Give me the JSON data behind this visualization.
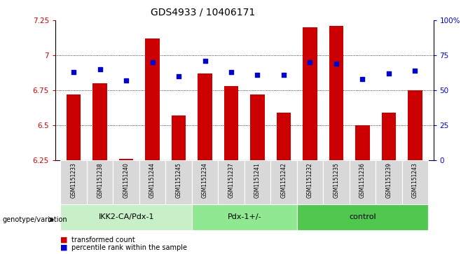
{
  "title": "GDS4933 / 10406171",
  "samples": [
    "GSM1151233",
    "GSM1151238",
    "GSM1151240",
    "GSM1151244",
    "GSM1151245",
    "GSM1151234",
    "GSM1151237",
    "GSM1151241",
    "GSM1151242",
    "GSM1151232",
    "GSM1151235",
    "GSM1151236",
    "GSM1151239",
    "GSM1151243"
  ],
  "groups": [
    {
      "label": "IKK2-CA/Pdx-1",
      "indices": [
        0,
        1,
        2,
        3,
        4
      ],
      "color": "#c8f0c8"
    },
    {
      "label": "Pdx-1+/-",
      "indices": [
        5,
        6,
        7,
        8
      ],
      "color": "#90e890"
    },
    {
      "label": "control",
      "indices": [
        9,
        10,
        11,
        12,
        13
      ],
      "color": "#50c850"
    }
  ],
  "bar_values": [
    6.72,
    6.8,
    6.26,
    7.12,
    6.57,
    6.87,
    6.78,
    6.72,
    6.59,
    7.2,
    7.21,
    6.5,
    6.59,
    6.75
  ],
  "dot_values": [
    63,
    65,
    57,
    70,
    60,
    71,
    63,
    61,
    61,
    70,
    69,
    58,
    62,
    64
  ],
  "ylim_left": [
    6.25,
    7.25
  ],
  "ylim_right": [
    0,
    100
  ],
  "yticks_left": [
    6.25,
    6.5,
    6.75,
    7.0,
    7.25
  ],
  "yticks_right": [
    0,
    25,
    50,
    75,
    100
  ],
  "ytick_labels_left": [
    "6.25",
    "6.5",
    "6.75",
    "7",
    "7.25"
  ],
  "ytick_labels_right": [
    "0",
    "25",
    "50",
    "75",
    "100%"
  ],
  "bar_color": "#cc0000",
  "dot_color": "#0000cc",
  "bar_width": 0.55,
  "bg_xticklabel": "#d8d8d8",
  "legend_bar_label": "transformed count",
  "legend_dot_label": "percentile rank within the sample",
  "xlabel_group": "genotype/variation"
}
